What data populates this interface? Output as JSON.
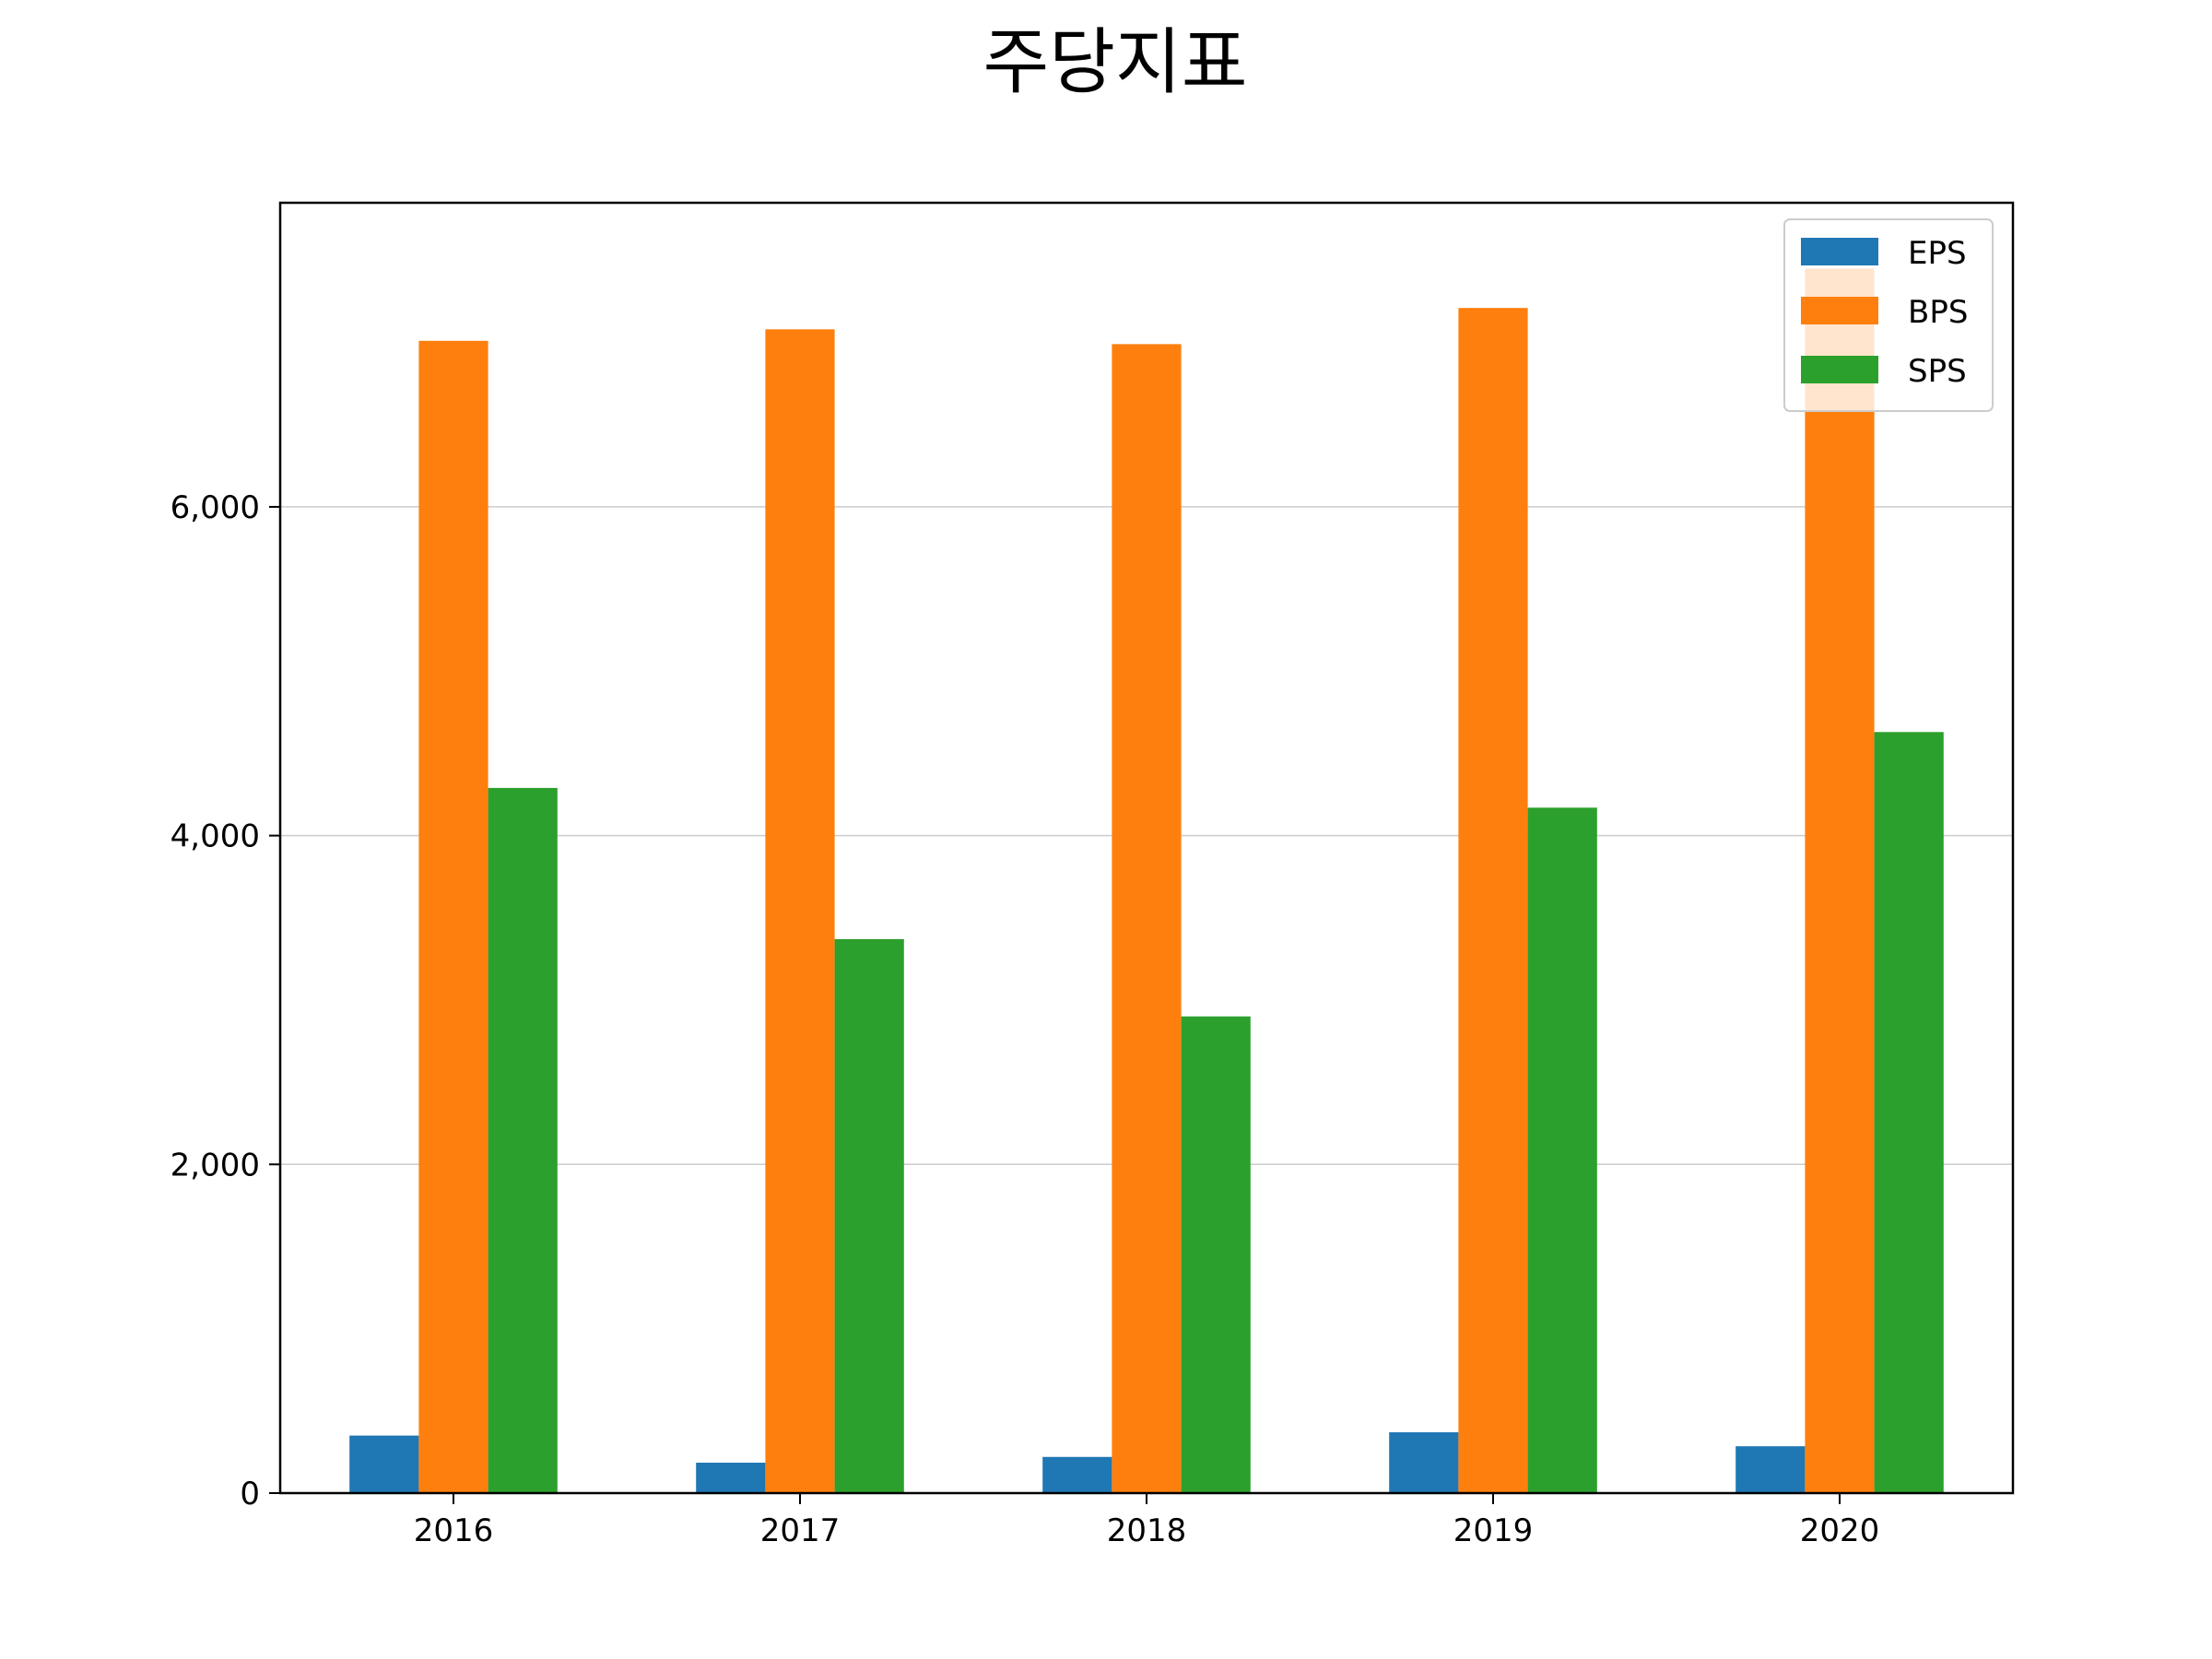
{
  "chart_data": {
    "type": "bar",
    "title": "주당지표",
    "xlabel": "",
    "ylabel": "",
    "categories": [
      "2016",
      "2017",
      "2018",
      "2019",
      "2020"
    ],
    "series": [
      {
        "name": "EPS",
        "color": "#1f77b4",
        "values": [
          350,
          185,
          220,
          370,
          285
        ]
      },
      {
        "name": "BPS",
        "color": "#ff7f0e",
        "values": [
          7010,
          7080,
          6990,
          7210,
          7450
        ]
      },
      {
        "name": "SPS",
        "color": "#2ca02c",
        "values": [
          4290,
          3370,
          2900,
          4170,
          4630
        ]
      }
    ],
    "ylim": [
      0,
      7850
    ],
    "yticks": [
      0,
      2000,
      4000,
      6000
    ],
    "ytick_labels": [
      "0",
      "2,000",
      "4,000",
      "6,000"
    ],
    "grid": "y",
    "legend_position": "top-right"
  }
}
